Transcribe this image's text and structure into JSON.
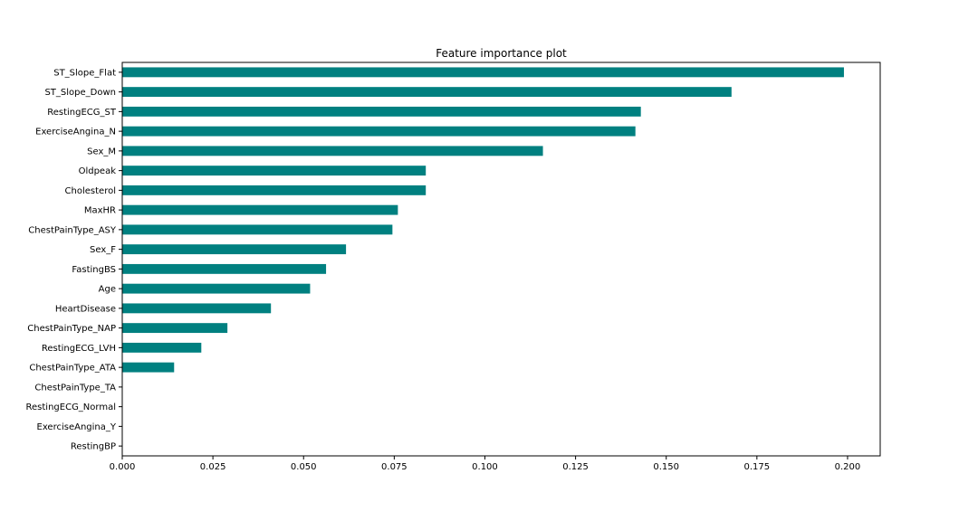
{
  "chart_data": {
    "type": "bar",
    "orientation": "horizontal",
    "title": "Feature importance plot",
    "xlabel": "",
    "ylabel": "",
    "bar_color": "#008080",
    "xlim": [
      0,
      0.209
    ],
    "xticks": [
      "0.000",
      "0.025",
      "0.050",
      "0.075",
      "0.100",
      "0.125",
      "0.150",
      "0.175",
      "0.200"
    ],
    "categories": [
      "ST_Slope_Flat",
      "ST_Slope_Down",
      "RestingECG_ST",
      "ExerciseAngina_N",
      "Sex_M",
      "Oldpeak",
      "Cholesterol",
      "MaxHR",
      "ChestPainType_ASY",
      "Sex_F",
      "FastingBS",
      "Age",
      "HeartDisease",
      "ChestPainType_NAP",
      "RestingECG_LVH",
      "ChestPainType_ATA",
      "ChestPainType_TA",
      "RestingECG_Normal",
      "ExerciseAngina_Y",
      "RestingBP"
    ],
    "values": [
      0.199,
      0.168,
      0.143,
      0.1415,
      0.116,
      0.0837,
      0.0837,
      0.076,
      0.0745,
      0.0617,
      0.0562,
      0.0518,
      0.041,
      0.029,
      0.0218,
      0.0143,
      0.0,
      0.0,
      0.0,
      0.0
    ],
    "grid": false,
    "legend": "none"
  }
}
